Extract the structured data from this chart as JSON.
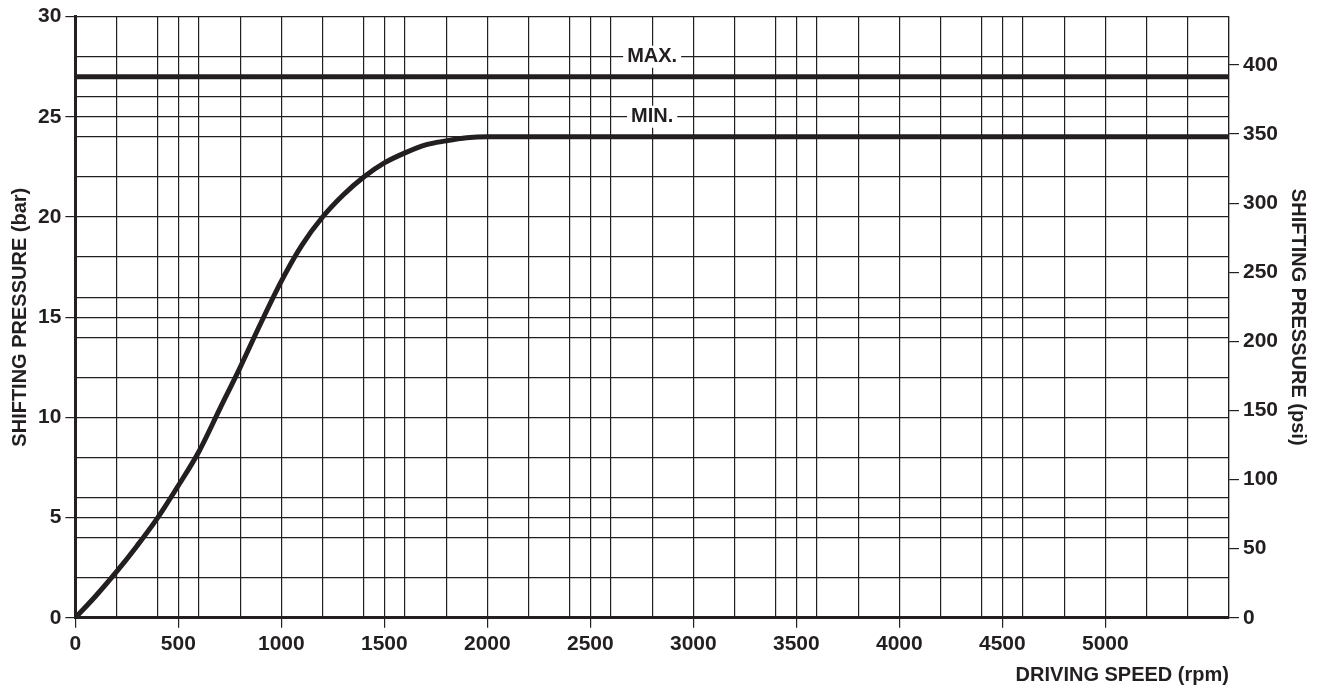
{
  "chart_data": {
    "type": "line",
    "xlabel": "DRIVING SPEED (rpm)",
    "ylabel": "SHIFTING PRESSURE (bar)",
    "y2label": "SHIFTING PRESSURE (psi)",
    "xlim": [
      0,
      5600
    ],
    "ylim": [
      0,
      30
    ],
    "y2lim": [
      0,
      435
    ],
    "xticks": [
      0,
      {
        "value": 200,
        "label": null
      },
      {
        "value": 400,
        "label": null
      },
      500,
      {
        "value": 600,
        "label": null
      },
      {
        "value": 800,
        "label": null
      },
      1000,
      {
        "value": 1200,
        "label": null
      },
      {
        "value": 1400,
        "label": null
      },
      1500,
      {
        "value": 1600,
        "label": null
      },
      {
        "value": 1800,
        "label": null
      },
      2000,
      {
        "value": 2200,
        "label": null
      },
      {
        "value": 2400,
        "label": null
      },
      2500,
      {
        "value": 2600,
        "label": null
      },
      {
        "value": 2800,
        "label": null
      },
      3000,
      {
        "value": 3200,
        "label": null
      },
      {
        "value": 3400,
        "label": null
      },
      3500,
      {
        "value": 3600,
        "label": null
      },
      {
        "value": 3800,
        "label": null
      },
      4000,
      {
        "value": 4200,
        "label": null
      },
      {
        "value": 4400,
        "label": null
      },
      4500,
      {
        "value": 4600,
        "label": null
      },
      {
        "value": 4800,
        "label": null
      },
      5000,
      {
        "value": 5200,
        "label": null
      },
      {
        "value": 5400,
        "label": null
      },
      {
        "value": 5600,
        "label": null
      }
    ],
    "yticks": [
      0,
      {
        "value": 2,
        "label": null
      },
      {
        "value": 4,
        "label": null
      },
      5,
      {
        "value": 6,
        "label": null
      },
      {
        "value": 8,
        "label": null
      },
      10,
      {
        "value": 12,
        "label": null
      },
      {
        "value": 14,
        "label": null
      },
      15,
      {
        "value": 16,
        "label": null
      },
      {
        "value": 18,
        "label": null
      },
      20,
      {
        "value": 22,
        "label": null
      },
      {
        "value": 24,
        "label": null
      },
      25,
      {
        "value": 26,
        "label": null
      },
      {
        "value": 28,
        "label": null
      },
      30
    ],
    "y2ticks": [
      0,
      50,
      100,
      150,
      200,
      250,
      300,
      350,
      400
    ],
    "grid": true,
    "legend": false,
    "marker": "none",
    "line_style": "solid",
    "series": [
      {
        "name": "MAX.",
        "color": "#231f20",
        "x": [
          0,
          5600
        ],
        "values": [
          27,
          27
        ]
      },
      {
        "name": "MIN.",
        "color": "#231f20",
        "x": [
          0,
          100,
          200,
          300,
          400,
          500,
          600,
          700,
          800,
          900,
          1000,
          1100,
          1200,
          1300,
          1400,
          1500,
          1600,
          1700,
          1800,
          1900,
          2000,
          5600
        ],
        "values": [
          0,
          1.1,
          2.3,
          3.6,
          5,
          6.6,
          8.3,
          10.4,
          12.5,
          14.7,
          16.8,
          18.6,
          20,
          21.1,
          22,
          22.7,
          23.2,
          23.6,
          23.8,
          23.95,
          24,
          24
        ]
      }
    ]
  }
}
